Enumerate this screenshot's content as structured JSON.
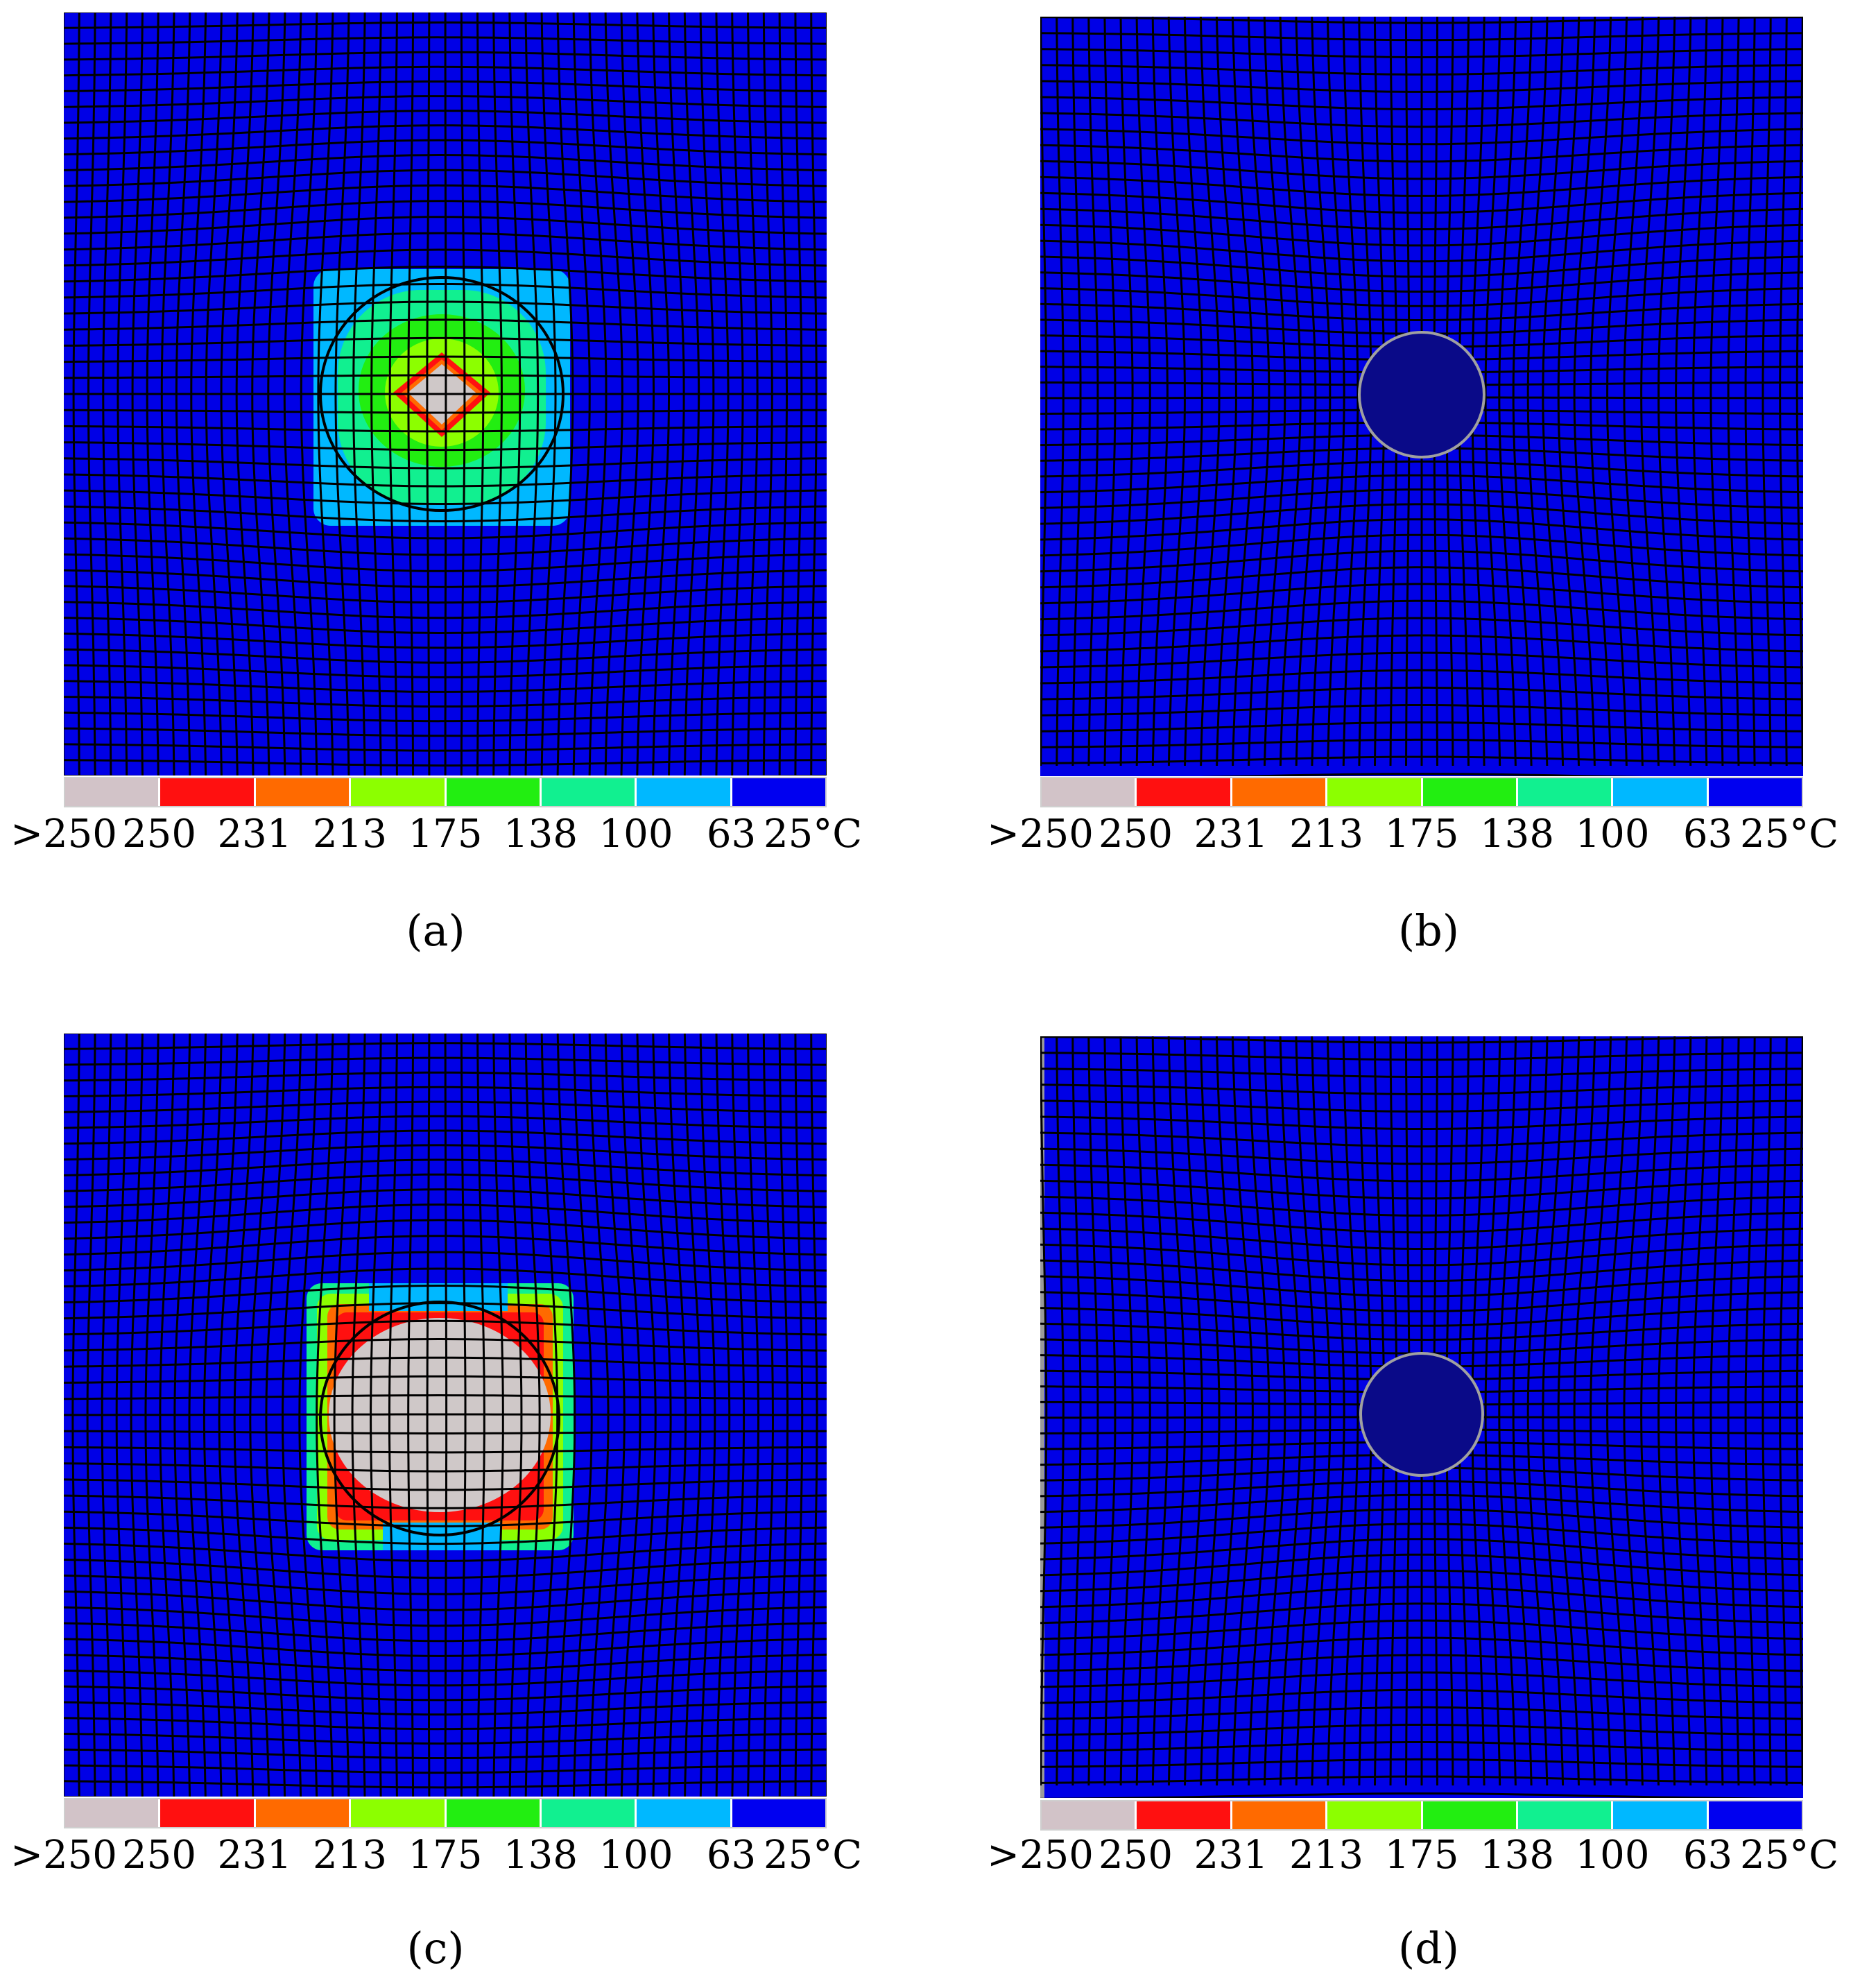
{
  "figure": {
    "legend": {
      "colors": [
        "#d2c3c8",
        "#ff1010",
        "#ff6a00",
        "#8cff00",
        "#22ee11",
        "#11f090",
        "#00b8ff",
        "#0000f0"
      ],
      "ticks": [
        ">250",
        "250",
        "231",
        "213",
        "175",
        "138",
        "100",
        "63",
        "25°C"
      ]
    },
    "panels": [
      {
        "id": "a",
        "caption": "(a)",
        "state": "heated-deformed",
        "core_color": "#c8c8c8"
      },
      {
        "id": "b",
        "caption": "(b)",
        "state": "cooled",
        "core_color": "#0a0a88"
      },
      {
        "id": "c",
        "caption": "(c)",
        "state": "heated-deformed-large",
        "core_color": "#c8c8c8"
      },
      {
        "id": "d",
        "caption": "(d)",
        "state": "cooled",
        "core_color": "#0a0a88"
      }
    ]
  }
}
